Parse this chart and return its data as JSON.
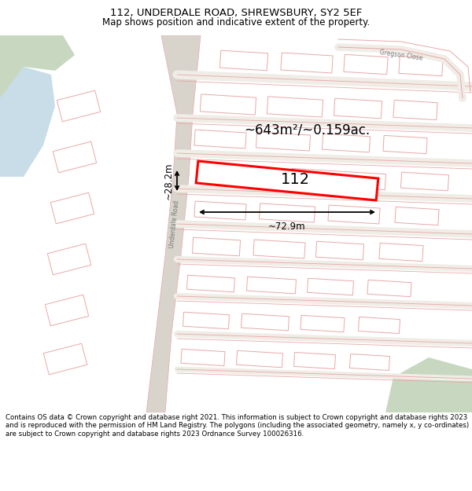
{
  "title": "112, UNDERDALE ROAD, SHREWSBURY, SY2 5EF",
  "subtitle": "Map shows position and indicative extent of the property.",
  "footer": "Contains OS data © Crown copyright and database right 2021. This information is subject to Crown copyright and database rights 2023 and is reproduced with the permission of HM Land Registry. The polygons (including the associated geometry, namely x, y co-ordinates) are subject to Crown copyright and database rights 2023 Ordnance Survey 100026316.",
  "area_label": "~643m²/~0.159ac.",
  "property_number": "112",
  "dim_width": "~72.9m",
  "dim_height": "~28.2m",
  "bg_color": "#edeae4",
  "road_stroke": "#e8a8a8",
  "road_fill": "#ffffff",
  "highlight_color": "#ff0000",
  "water_color": "#c8dde8",
  "green_color": "#c8d8c0",
  "title_fontsize": 9.5,
  "subtitle_fontsize": 8.5,
  "footer_fontsize": 6.2
}
